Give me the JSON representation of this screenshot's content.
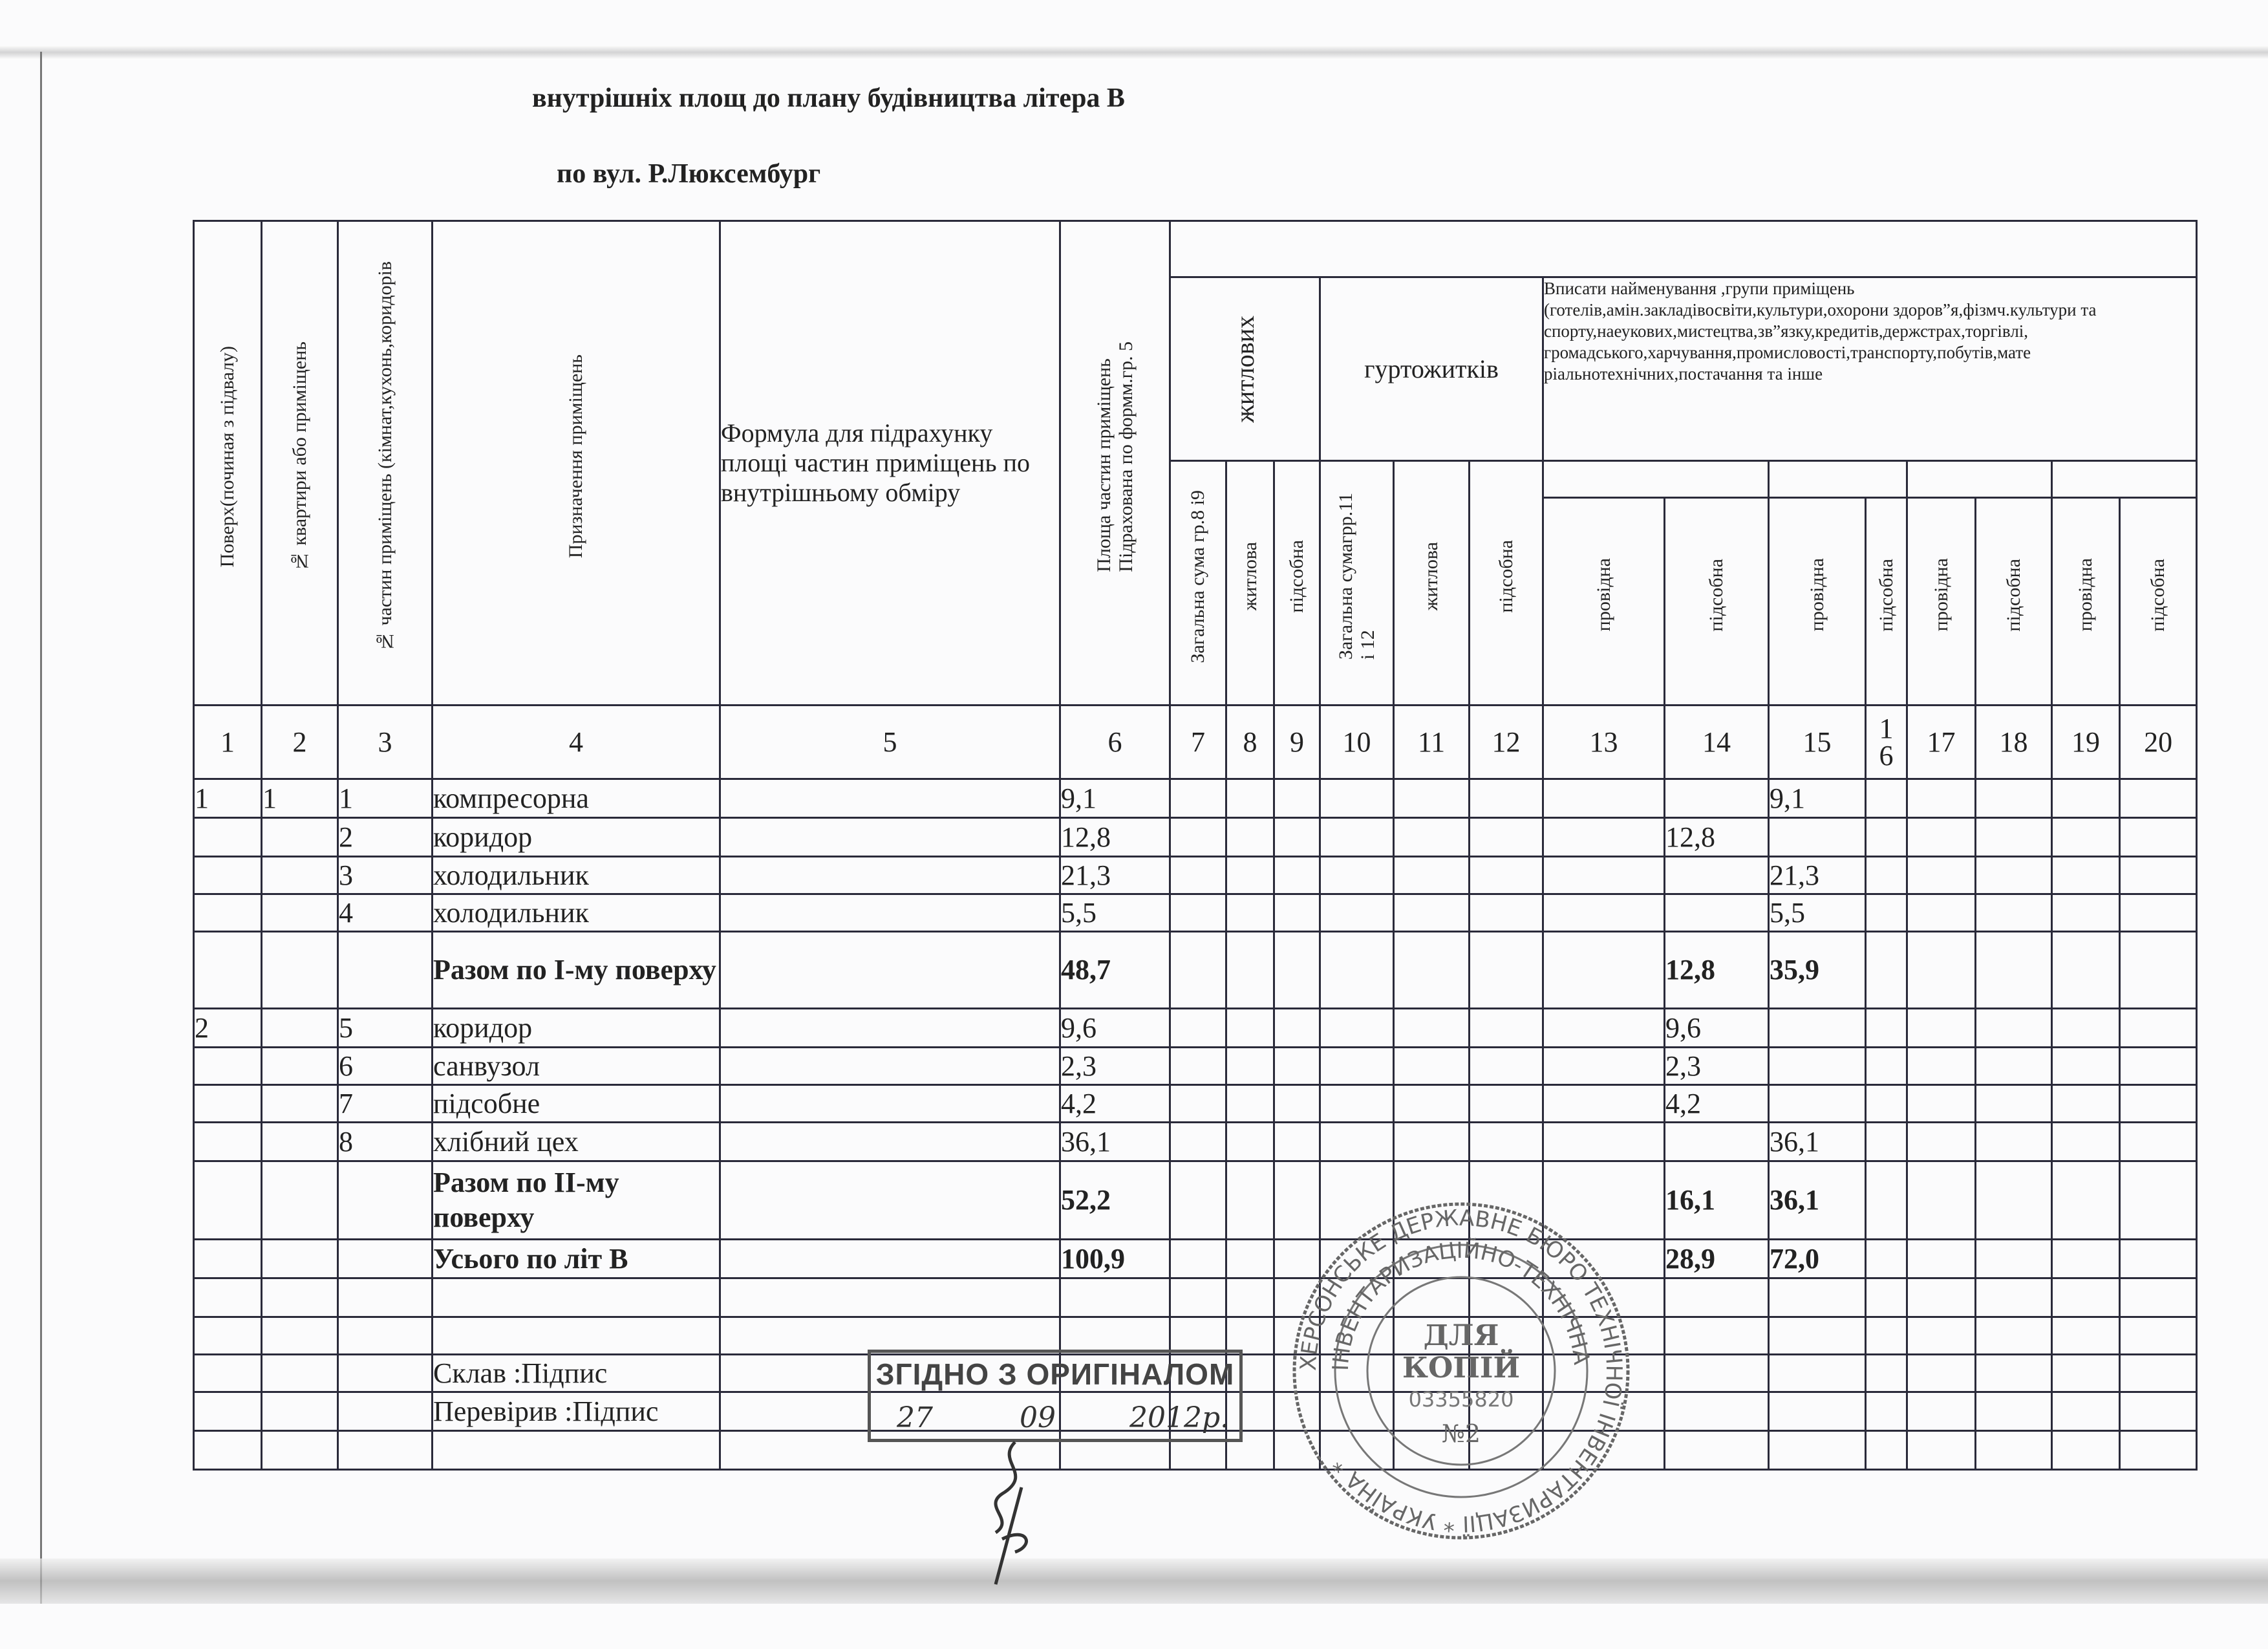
{
  "title_line1": "внутрішніх площ до плану будівництва літера     В",
  "title_line2": "по вул.  Р.Люксембург",
  "headers": {
    "c1": "Поверх(починая  з підвалу)",
    "c2": "№ квартири або приміщень",
    "c3": "№ частин приміщень (кімнат,кухонь,коридорів",
    "c4": "Призначення приміщень",
    "c5": "Формула для підрахунку площі частин приміщень по внутрішньому обміру",
    "c6": "Площа частин приміщень\nПідрахована по формм.гр. 5",
    "group_residential": "житлових",
    "group_dormitory": "гуртожитків",
    "group_other": "Вписати найменування ,групи приміщень (готелів,амін.закладівосвіти,культури,охорони здоров”я,фізмч.культури та спорту,наеукових,мистецтва,зв”язку,кредитів,держстрах,торгівлі, громадського,харчування,промисловості,транспорту,побутів,мате ріальнотехнічних,постачання та інше",
    "c7": "Загальна сума гр.8 і9",
    "c8": "житлова",
    "c9": "підсобна",
    "c10": "Загальна сумагрр.11\nі 12",
    "c11": "житлова",
    "c12": "підсобна",
    "c13": "провідна",
    "c14": "підсобна",
    "c15": "провідна",
    "c16": "підсобна",
    "c17": "провідна",
    "c18": "підсобна",
    "c19": "провідна",
    "c20": "підсобна"
  },
  "column_numbers": [
    "1",
    "2",
    "3",
    "4",
    "5",
    "6",
    "7",
    "8",
    "9",
    "10",
    "11",
    "12",
    "13",
    "14",
    "15",
    "16",
    "17",
    "18",
    "19",
    "20"
  ],
  "rows": [
    {
      "bold": false,
      "cells": [
        "1",
        "1",
        "1",
        "компресорна",
        "",
        "9,1",
        "",
        "",
        "",
        "",
        "",
        "",
        "",
        "",
        "9,1",
        "",
        "",
        "",
        "",
        ""
      ]
    },
    {
      "bold": false,
      "cells": [
        "",
        "",
        "2",
        "коридор",
        "",
        "12,8",
        "",
        "",
        "",
        "",
        "",
        "",
        "",
        "12,8",
        "",
        "",
        "",
        "",
        "",
        ""
      ]
    },
    {
      "bold": false,
      "cells": [
        "",
        "",
        "3",
        "холодильник",
        "",
        "21,3",
        "",
        "",
        "",
        "",
        "",
        "",
        "",
        "",
        "21,3",
        "",
        "",
        "",
        "",
        ""
      ]
    },
    {
      "bold": false,
      "cells": [
        "",
        "",
        "4",
        "холодильник",
        "",
        "5,5",
        "",
        "",
        "",
        "",
        "",
        "",
        "",
        "",
        "5,5",
        "",
        "",
        "",
        "",
        ""
      ]
    },
    {
      "bold": true,
      "cells": [
        "",
        "",
        "",
        "Разом по І-му поверху",
        "",
        "48,7",
        "",
        "",
        "",
        "",
        "",
        "",
        "",
        "12,8",
        "35,9",
        "",
        "",
        "",
        "",
        ""
      ]
    },
    {
      "bold": false,
      "cells": [
        "2",
        "",
        "5",
        "коридор",
        "",
        "9,6",
        "",
        "",
        "",
        "",
        "",
        "",
        "",
        "9,6",
        "",
        "",
        "",
        "",
        "",
        ""
      ]
    },
    {
      "bold": false,
      "cells": [
        "",
        "",
        "6",
        "санвузол",
        "",
        "2,3",
        "",
        "",
        "",
        "",
        "",
        "",
        "",
        "2,3",
        "",
        "",
        "",
        "",
        "",
        ""
      ]
    },
    {
      "bold": false,
      "cells": [
        "",
        "",
        "7",
        "підсобне",
        "",
        "4,2",
        "",
        "",
        "",
        "",
        "",
        "",
        "",
        "4,2",
        "",
        "",
        "",
        "",
        "",
        ""
      ]
    },
    {
      "bold": false,
      "cells": [
        "",
        "",
        "8",
        "хлібний цех",
        "",
        "36,1",
        "",
        "",
        "",
        "",
        "",
        "",
        "",
        "",
        "36,1",
        "",
        "",
        "",
        "",
        ""
      ]
    },
    {
      "bold": true,
      "cells": [
        "",
        "",
        "",
        "Разом по ІІ-му поверху",
        "",
        "52,2",
        "",
        "",
        "",
        "",
        "",
        "",
        "",
        "16,1",
        "36,1",
        "",
        "",
        "",
        "",
        ""
      ]
    },
    {
      "bold": true,
      "cells": [
        "",
        "",
        "",
        "Усього по літ В",
        "",
        "100,9",
        "",
        "",
        "",
        "",
        "",
        "",
        "",
        "28,9",
        "72,0",
        "",
        "",
        "",
        "",
        ""
      ]
    },
    {
      "bold": false,
      "cells": [
        "",
        "",
        "",
        "",
        "",
        "",
        "",
        "",
        "",
        "",
        "",
        "",
        "",
        "",
        "",
        "",
        "",
        "",
        "",
        ""
      ]
    },
    {
      "bold": false,
      "cells": [
        "",
        "",
        "",
        "",
        "",
        "",
        "",
        "",
        "",
        "",
        "",
        "",
        "",
        "",
        "",
        "",
        "",
        "",
        "",
        ""
      ]
    },
    {
      "bold": false,
      "cells": [
        "",
        "",
        "",
        "Склав :Підпис",
        "",
        "",
        "",
        "",
        "",
        "",
        "",
        "",
        "",
        "",
        "",
        "",
        "",
        "",
        "",
        ""
      ]
    },
    {
      "bold": false,
      "cells": [
        "",
        "",
        "",
        "Перевірив :Підпис",
        "",
        "",
        "",
        "",
        "",
        "",
        "",
        "",
        "",
        "",
        "",
        "",
        "",
        "",
        "",
        ""
      ]
    },
    {
      "bold": false,
      "cells": [
        "",
        "",
        "",
        "",
        "",
        "",
        "",
        "",
        "",
        "",
        "",
        "",
        "",
        "",
        "",
        "",
        "",
        "",
        "",
        ""
      ]
    }
  ],
  "stamp": {
    "text": "ЗГІДНО З ОРИГІНАЛОМ",
    "day": "27",
    "month": "09",
    "year": "2012р."
  },
  "seal": {
    "center_line1": "ДЛЯ",
    "center_line2": "КОПІЙ",
    "code": "03355820",
    "number": "№2",
    "outer_ring": "ХЕРСОНСЬКЕ ДЕРЖАВНЕ БЮРО ТЕХНІЧНОЇ ІНВЕНТАРИЗАЦІЇ * УКРАЇНА *",
    "inner_ring": "ІНВЕНТАРИЗАЦІЙНО-ТЕХНІЧНА"
  },
  "colors": {
    "ink": "#2a2a3a",
    "stamp": "#555555"
  }
}
